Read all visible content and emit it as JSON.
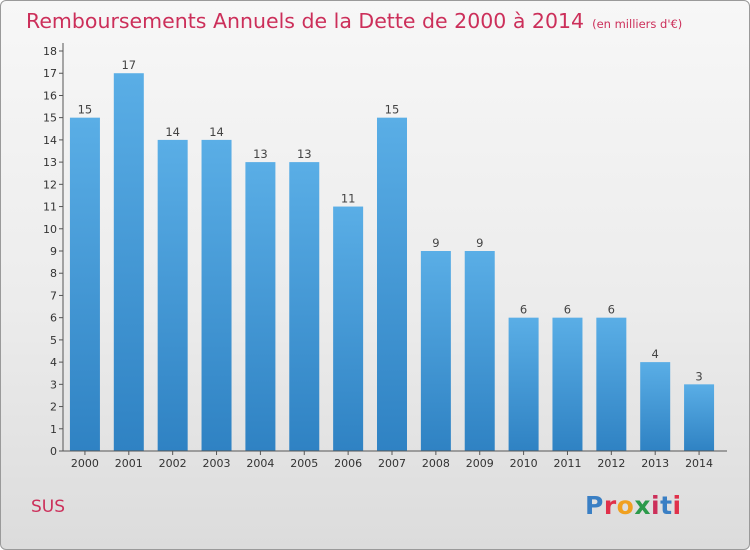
{
  "header": {
    "title": "Remboursements Annuels de la Dette de 2000 à 2014",
    "unit": "(en milliers d'€)"
  },
  "footer": {
    "commune": "SUS",
    "logo_text": "Proxiti",
    "logo_colors": [
      "#3a7fc4",
      "#e0304a",
      "#f0a020",
      "#2c9a4a",
      "#cc2f5a",
      "#3a7fc4",
      "#e0304a"
    ]
  },
  "chart_data": {
    "type": "bar",
    "title": "Remboursements Annuels de la Dette de 2000 à 2014",
    "subtitle": "(en milliers d'€)",
    "categories": [
      "2000",
      "2001",
      "2002",
      "2003",
      "2004",
      "2005",
      "2006",
      "2007",
      "2008",
      "2009",
      "2010",
      "2011",
      "2012",
      "2013",
      "2014"
    ],
    "values": [
      15,
      17,
      14,
      14,
      13,
      13,
      11,
      15,
      9,
      9,
      6,
      6,
      6,
      4,
      3
    ],
    "y_ticks": [
      0,
      1,
      2,
      3,
      4,
      5,
      6,
      7,
      8,
      9,
      10,
      11,
      12,
      13,
      14,
      15,
      16,
      17,
      18
    ],
    "ylim": [
      0,
      18
    ],
    "xlabel": "",
    "ylabel": "",
    "grid": false,
    "legend": "none",
    "bar_color_top": "#5aaee6",
    "bar_color_bottom": "#2f82c3"
  }
}
